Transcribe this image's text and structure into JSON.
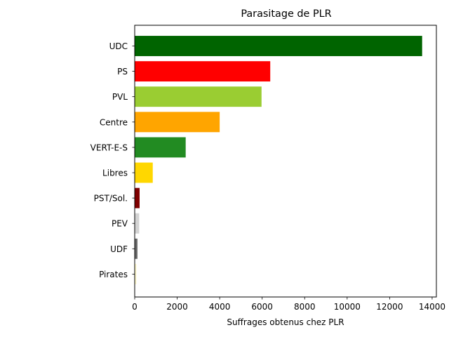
{
  "chart_data": {
    "type": "bar",
    "orientation": "horizontal",
    "title": "Parasitage de PLR",
    "xlabel": "Suffrages obtenus chez PLR",
    "ylabel": "",
    "xlim": [
      0,
      14200
    ],
    "xticks": [
      0,
      2000,
      4000,
      6000,
      8000,
      10000,
      12000,
      14000
    ],
    "xtick_labels": [
      "0",
      "2000",
      "4000",
      "6000",
      "8000",
      "10000",
      "12000",
      "14000"
    ],
    "grid": false,
    "categories": [
      "UDC",
      "PS",
      "PVL",
      "Centre",
      "VERT-E-S",
      "Libres",
      "PST/Sol.",
      "PEV",
      "UDF",
      "Pirates"
    ],
    "values": [
      13530,
      6380,
      5970,
      4000,
      2400,
      850,
      230,
      210,
      130,
      80
    ],
    "colors": [
      "#006400",
      "#ff0000",
      "#9acd32",
      "#ffa500",
      "#228b22",
      "#ffd700",
      "#800000",
      "#d3d3d3",
      "#696969",
      "#fffacd"
    ]
  }
}
